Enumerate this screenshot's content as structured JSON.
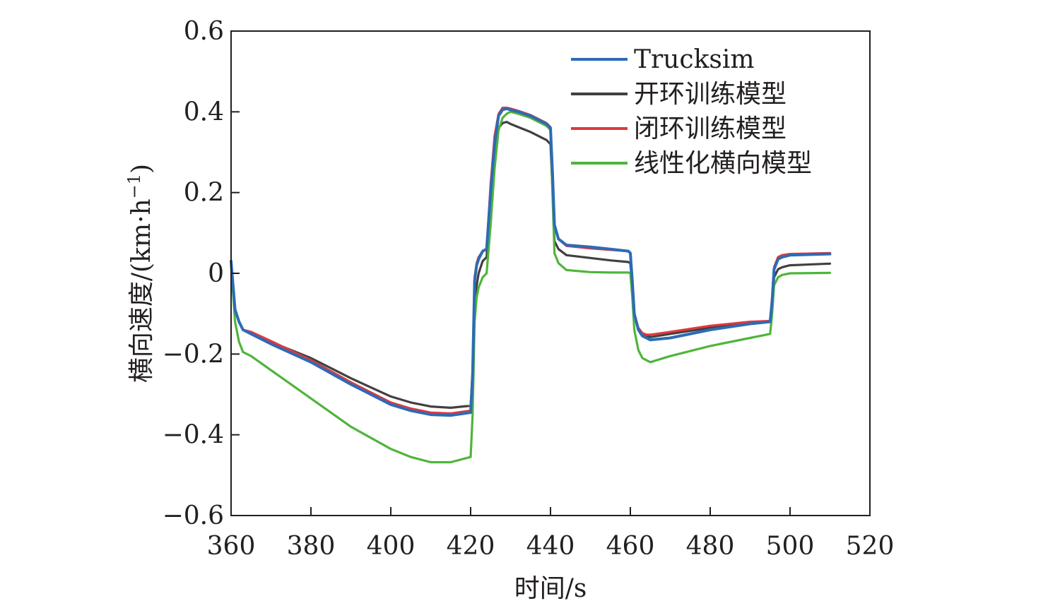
{
  "chart_data": {
    "type": "line",
    "title": "",
    "xlabel": "时间/s",
    "ylabel": "横向速度/(km·h⁻¹)",
    "ylabel_parts": {
      "main": "横向速度/(km·h",
      "sup": "−1",
      "close": ")"
    },
    "xlim": [
      360,
      520
    ],
    "ylim": [
      -0.6,
      0.6
    ],
    "xticks": [
      360,
      380,
      400,
      420,
      440,
      460,
      480,
      500,
      520
    ],
    "xtick_labels": [
      "360",
      "380",
      "400",
      "420",
      "440",
      "460",
      "480",
      "500",
      "520"
    ],
    "yticks": [
      -0.6,
      -0.4,
      -0.2,
      0,
      0.2,
      0.4,
      0.6
    ],
    "ytick_labels": [
      "−0.6",
      "−0.4",
      "−0.2",
      "0",
      "0.2",
      "0.4",
      "0.6"
    ],
    "grid": false,
    "legend_position": "top-right",
    "series": [
      {
        "name": "Trucksim",
        "color": "#2d6bb5",
        "x": [
          360,
          360.5,
          361,
          362,
          363,
          365,
          370,
          380,
          390,
          400,
          405,
          410,
          415,
          420,
          420.5,
          421,
          421.5,
          422,
          423,
          424,
          425,
          426,
          427,
          428,
          429,
          430,
          432,
          435,
          437,
          439,
          440,
          440.5,
          441,
          442,
          444,
          450,
          455,
          459.5,
          460,
          460.5,
          461,
          462,
          463,
          464,
          465,
          470,
          480,
          490,
          495,
          495.5,
          496,
          497,
          498,
          500,
          510
        ],
        "y": [
          0.03,
          -0.03,
          -0.09,
          -0.12,
          -0.14,
          -0.15,
          -0.175,
          -0.22,
          -0.275,
          -0.325,
          -0.34,
          -0.35,
          -0.352,
          -0.345,
          -0.25,
          -0.02,
          0.02,
          0.035,
          0.055,
          0.06,
          0.2,
          0.32,
          0.39,
          0.405,
          0.408,
          0.405,
          0.4,
          0.39,
          0.38,
          0.37,
          0.36,
          0.25,
          0.12,
          0.085,
          0.07,
          0.065,
          0.06,
          0.055,
          0.05,
          -0.02,
          -0.1,
          -0.14,
          -0.155,
          -0.16,
          -0.165,
          -0.16,
          -0.14,
          -0.125,
          -0.12,
          -0.07,
          0.01,
          0.035,
          0.04,
          0.045,
          0.048
        ]
      },
      {
        "name": "开环训练模型",
        "color": "#404040",
        "x": [
          360,
          360.5,
          361,
          362,
          363,
          365,
          370,
          380,
          390,
          400,
          405,
          410,
          415,
          420,
          420.5,
          421,
          421.5,
          422,
          423,
          424,
          425,
          426,
          427,
          428,
          429,
          430,
          432,
          435,
          437,
          439,
          440,
          440.5,
          441,
          442,
          444,
          450,
          455,
          459.5,
          460,
          460.5,
          461,
          462,
          463,
          464,
          465,
          470,
          480,
          490,
          495,
          495.5,
          496,
          497,
          498,
          500,
          510
        ],
        "y": [
          0.025,
          -0.03,
          -0.09,
          -0.12,
          -0.14,
          -0.148,
          -0.17,
          -0.21,
          -0.26,
          -0.305,
          -0.32,
          -0.33,
          -0.333,
          -0.328,
          -0.25,
          -0.07,
          -0.03,
          0.0,
          0.03,
          0.04,
          0.18,
          0.3,
          0.36,
          0.372,
          0.375,
          0.37,
          0.362,
          0.35,
          0.34,
          0.33,
          0.32,
          0.21,
          0.08,
          0.06,
          0.045,
          0.038,
          0.032,
          0.028,
          0.025,
          -0.03,
          -0.1,
          -0.14,
          -0.15,
          -0.155,
          -0.158,
          -0.15,
          -0.135,
          -0.122,
          -0.12,
          -0.08,
          -0.01,
          0.01,
          0.015,
          0.02,
          0.024
        ]
      },
      {
        "name": "闭环训练模型",
        "color": "#e0383e",
        "x": [
          360,
          360.5,
          361,
          362,
          363,
          365,
          370,
          380,
          390,
          400,
          405,
          410,
          415,
          420,
          420.5,
          421,
          421.5,
          422,
          423,
          424,
          425,
          426,
          427,
          428,
          429,
          430,
          432,
          435,
          437,
          439,
          440,
          440.5,
          441,
          442,
          444,
          450,
          455,
          459.5,
          460,
          460.5,
          461,
          462,
          463,
          464,
          465,
          470,
          480,
          490,
          495,
          495.5,
          496,
          497,
          498,
          500,
          510
        ],
        "y": [
          0.03,
          -0.03,
          -0.09,
          -0.12,
          -0.14,
          -0.145,
          -0.168,
          -0.215,
          -0.27,
          -0.32,
          -0.335,
          -0.345,
          -0.347,
          -0.34,
          -0.24,
          -0.01,
          0.025,
          0.04,
          0.055,
          0.06,
          0.22,
          0.34,
          0.395,
          0.41,
          0.41,
          0.408,
          0.402,
          0.392,
          0.382,
          0.372,
          0.362,
          0.25,
          0.12,
          0.085,
          0.068,
          0.062,
          0.058,
          0.055,
          0.05,
          -0.02,
          -0.1,
          -0.135,
          -0.148,
          -0.152,
          -0.152,
          -0.145,
          -0.13,
          -0.12,
          -0.118,
          -0.06,
          0.015,
          0.04,
          0.045,
          0.048,
          0.05
        ]
      },
      {
        "name": "线性化横向模型",
        "color": "#4fb53a",
        "x": [
          360,
          360.5,
          361,
          362,
          363,
          365,
          370,
          380,
          390,
          400,
          405,
          410,
          415,
          420,
          420.5,
          421,
          421.5,
          422,
          423,
          424,
          425,
          426,
          427,
          428,
          429,
          430,
          432,
          435,
          437,
          439,
          440,
          440.5,
          441,
          442,
          444,
          450,
          455,
          459.5,
          460,
          460.5,
          461,
          462,
          463,
          464,
          465,
          470,
          480,
          490,
          495,
          495.5,
          496,
          497,
          498,
          500,
          510
        ],
        "y": [
          0.02,
          -0.05,
          -0.12,
          -0.17,
          -0.195,
          -0.205,
          -0.24,
          -0.31,
          -0.38,
          -0.435,
          -0.455,
          -0.468,
          -0.468,
          -0.455,
          -0.35,
          -0.12,
          -0.06,
          -0.035,
          -0.01,
          0.0,
          0.12,
          0.26,
          0.355,
          0.385,
          0.395,
          0.4,
          0.395,
          0.385,
          0.375,
          0.365,
          0.355,
          0.2,
          0.05,
          0.025,
          0.008,
          0.003,
          0.002,
          0.002,
          0.0,
          -0.06,
          -0.14,
          -0.19,
          -0.21,
          -0.215,
          -0.22,
          -0.205,
          -0.18,
          -0.16,
          -0.15,
          -0.1,
          -0.03,
          -0.01,
          -0.004,
          0.0,
          0.001
        ]
      }
    ]
  }
}
